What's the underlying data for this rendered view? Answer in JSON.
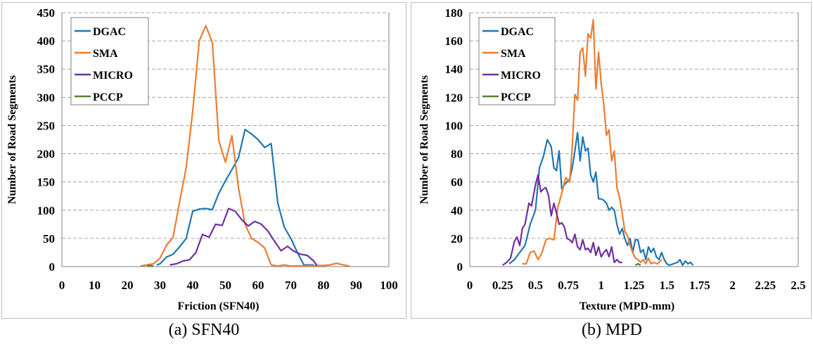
{
  "figure": {
    "captions": [
      "(a) SFN40",
      "(b) MPD"
    ]
  },
  "chart_data": [
    {
      "type": "line",
      "caption": "(a) SFN40",
      "xlabel": "Friction (SFN40)",
      "ylabel": "Number of Road Segments",
      "xlim": [
        0,
        100
      ],
      "ylim": [
        0,
        450
      ],
      "xticks": [
        "0",
        "10",
        "20",
        "30",
        "40",
        "50",
        "60",
        "70",
        "80",
        "90",
        "100"
      ],
      "yticks": [
        "0",
        "50",
        "100",
        "150",
        "200",
        "250",
        "300",
        "350",
        "400",
        "450"
      ],
      "grid": "horizontal dashed",
      "legend_position": "top-left",
      "series": [
        {
          "name": "DGAC",
          "color": "#1f77b4",
          "points": [
            [
              29,
              3
            ],
            [
              30,
              5
            ],
            [
              32,
              17
            ],
            [
              34,
              22
            ],
            [
              36,
              35
            ],
            [
              38,
              50
            ],
            [
              40,
              98
            ],
            [
              42,
              102
            ],
            [
              44,
              103
            ],
            [
              46,
              101
            ],
            [
              48,
              130
            ],
            [
              50,
              152
            ],
            [
              52,
              172
            ],
            [
              54,
              193
            ],
            [
              56,
              243
            ],
            [
              58,
              235
            ],
            [
              60,
              225
            ],
            [
              62,
              211
            ],
            [
              64,
              218
            ],
            [
              66,
              113
            ],
            [
              68,
              70
            ],
            [
              70,
              50
            ],
            [
              72,
              25
            ],
            [
              74,
              3
            ],
            [
              77,
              3
            ]
          ]
        },
        {
          "name": "SMA",
          "color": "#ed7d31",
          "points": [
            [
              24,
              1
            ],
            [
              26,
              3
            ],
            [
              28,
              5
            ],
            [
              30,
              15
            ],
            [
              32,
              38
            ],
            [
              34,
              52
            ],
            [
              36,
              115
            ],
            [
              38,
              175
            ],
            [
              40,
              275
            ],
            [
              42,
              400
            ],
            [
              44,
              427
            ],
            [
              46,
              397
            ],
            [
              48,
              223
            ],
            [
              50,
              185
            ],
            [
              52,
              232
            ],
            [
              54,
              140
            ],
            [
              56,
              75
            ],
            [
              58,
              50
            ],
            [
              60,
              43
            ],
            [
              62,
              33
            ],
            [
              64,
              3
            ],
            [
              66,
              1
            ],
            [
              68,
              3
            ],
            [
              70,
              1
            ],
            [
              80,
              2
            ],
            [
              82,
              3
            ],
            [
              84,
              6
            ],
            [
              86,
              3
            ],
            [
              88,
              1
            ]
          ]
        },
        {
          "name": "MICRO",
          "color": "#7030a0",
          "points": [
            [
              33,
              3
            ],
            [
              35,
              5
            ],
            [
              37,
              10
            ],
            [
              39,
              12
            ],
            [
              41,
              25
            ],
            [
              43,
              57
            ],
            [
              45,
              52
            ],
            [
              47,
              75
            ],
            [
              49,
              73
            ],
            [
              51,
              103
            ],
            [
              53,
              98
            ],
            [
              55,
              83
            ],
            [
              57,
              72
            ],
            [
              59,
              80
            ],
            [
              61,
              75
            ],
            [
              63,
              63
            ],
            [
              65,
              45
            ],
            [
              67,
              28
            ],
            [
              69,
              36
            ],
            [
              71,
              27
            ],
            [
              73,
              22
            ],
            [
              75,
              20
            ],
            [
              77,
              10
            ],
            [
              78,
              2
            ]
          ]
        },
        {
          "name": "PCCP",
          "color": "#548235",
          "points": [
            [
              26,
              1
            ],
            [
              27,
              2
            ],
            [
              28,
              1
            ]
          ]
        }
      ]
    },
    {
      "type": "line",
      "caption": "(b) MPD",
      "xlabel": "Texture (MPD-mm)",
      "ylabel": "Number of Road Segments",
      "xlim": [
        0,
        2.5
      ],
      "ylim": [
        0,
        180
      ],
      "xticks": [
        "0",
        "0.25",
        "0.5",
        "0.75",
        "1",
        "1.25",
        "1.5",
        "1.75",
        "2",
        "2.25",
        "2.5"
      ],
      "yticks": [
        "0",
        "20",
        "40",
        "60",
        "80",
        "100",
        "120",
        "140",
        "160",
        "180"
      ],
      "grid": "horizontal dashed",
      "legend_position": "top-left",
      "series": [
        {
          "name": "DGAC",
          "color": "#1f77b4",
          "points": [
            [
              0.3,
              2
            ],
            [
              0.34,
              5
            ],
            [
              0.38,
              10
            ],
            [
              0.42,
              15
            ],
            [
              0.46,
              30
            ],
            [
              0.5,
              40
            ],
            [
              0.53,
              70
            ],
            [
              0.56,
              78
            ],
            [
              0.59,
              90
            ],
            [
              0.62,
              85
            ],
            [
              0.64,
              70
            ],
            [
              0.66,
              68
            ],
            [
              0.68,
              82
            ],
            [
              0.7,
              55
            ],
            [
              0.72,
              58
            ],
            [
              0.74,
              60
            ],
            [
              0.76,
              62
            ],
            [
              0.78,
              70
            ],
            [
              0.8,
              82
            ],
            [
              0.82,
              95
            ],
            [
              0.84,
              75
            ],
            [
              0.86,
              92
            ],
            [
              0.88,
              82
            ],
            [
              0.9,
              84
            ],
            [
              0.92,
              65
            ],
            [
              0.94,
              60
            ],
            [
              0.96,
              67
            ],
            [
              0.98,
              48
            ],
            [
              1.0,
              48
            ],
            [
              1.02,
              47
            ],
            [
              1.04,
              45
            ],
            [
              1.06,
              40
            ],
            [
              1.08,
              42
            ],
            [
              1.1,
              40
            ],
            [
              1.12,
              30
            ],
            [
              1.14,
              23
            ],
            [
              1.16,
              27
            ],
            [
              1.18,
              20
            ],
            [
              1.2,
              15
            ],
            [
              1.22,
              20
            ],
            [
              1.24,
              10
            ],
            [
              1.26,
              19
            ],
            [
              1.28,
              19
            ],
            [
              1.3,
              10
            ],
            [
              1.32,
              12
            ],
            [
              1.34,
              5
            ],
            [
              1.36,
              14
            ],
            [
              1.38,
              10
            ],
            [
              1.4,
              13
            ],
            [
              1.42,
              7
            ],
            [
              1.44,
              5
            ],
            [
              1.46,
              10
            ],
            [
              1.48,
              5
            ],
            [
              1.5,
              2
            ],
            [
              1.52,
              1
            ],
            [
              1.58,
              3
            ],
            [
              1.6,
              5
            ],
            [
              1.62,
              1
            ],
            [
              1.64,
              4
            ],
            [
              1.66,
              2
            ],
            [
              1.68,
              3
            ],
            [
              1.7,
              1
            ]
          ]
        },
        {
          "name": "SMA",
          "color": "#ed7d31",
          "points": [
            [
              0.4,
              2
            ],
            [
              0.43,
              2
            ],
            [
              0.46,
              10
            ],
            [
              0.49,
              11
            ],
            [
              0.52,
              5
            ],
            [
              0.55,
              10
            ],
            [
              0.58,
              19
            ],
            [
              0.61,
              20
            ],
            [
              0.64,
              19
            ],
            [
              0.67,
              42
            ],
            [
              0.7,
              52
            ],
            [
              0.73,
              63
            ],
            [
              0.76,
              60
            ],
            [
              0.78,
              85
            ],
            [
              0.8,
              122
            ],
            [
              0.82,
              118
            ],
            [
              0.84,
              152
            ],
            [
              0.86,
              155
            ],
            [
              0.88,
              135
            ],
            [
              0.9,
              165
            ],
            [
              0.92,
              162
            ],
            [
              0.94,
              175
            ],
            [
              0.96,
              126
            ],
            [
              0.98,
              152
            ],
            [
              1.0,
              130
            ],
            [
              1.02,
              115
            ],
            [
              1.04,
              93
            ],
            [
              1.06,
              97
            ],
            [
              1.08,
              75
            ],
            [
              1.1,
              82
            ],
            [
              1.12,
              56
            ],
            [
              1.14,
              49
            ],
            [
              1.16,
              38
            ],
            [
              1.18,
              25
            ],
            [
              1.2,
              22
            ],
            [
              1.22,
              15
            ],
            [
              1.24,
              10
            ],
            [
              1.26,
              6
            ],
            [
              1.28,
              5
            ],
            [
              1.3,
              3
            ],
            [
              1.32,
              5
            ],
            [
              1.34,
              2
            ],
            [
              1.36,
              6
            ],
            [
              1.38,
              2
            ],
            [
              1.4,
              3
            ],
            [
              1.43,
              2
            ],
            [
              1.46,
              5
            ]
          ]
        },
        {
          "name": "MICRO",
          "color": "#7030a0",
          "points": [
            [
              0.25,
              1
            ],
            [
              0.28,
              3
            ],
            [
              0.31,
              6
            ],
            [
              0.34,
              18
            ],
            [
              0.36,
              21
            ],
            [
              0.38,
              15
            ],
            [
              0.4,
              27
            ],
            [
              0.42,
              30
            ],
            [
              0.45,
              45
            ],
            [
              0.47,
              43
            ],
            [
              0.5,
              58
            ],
            [
              0.52,
              65
            ],
            [
              0.54,
              53
            ],
            [
              0.56,
              55
            ],
            [
              0.58,
              56
            ],
            [
              0.6,
              50
            ],
            [
              0.62,
              36
            ],
            [
              0.64,
              45
            ],
            [
              0.66,
              38
            ],
            [
              0.68,
              30
            ],
            [
              0.7,
              31
            ],
            [
              0.72,
              28
            ],
            [
              0.74,
              20
            ],
            [
              0.76,
              19
            ],
            [
              0.78,
              17
            ],
            [
              0.8,
              23
            ],
            [
              0.82,
              14
            ],
            [
              0.84,
              12
            ],
            [
              0.86,
              19
            ],
            [
              0.88,
              12
            ],
            [
              0.9,
              13
            ],
            [
              0.92,
              10
            ],
            [
              0.94,
              17
            ],
            [
              0.96,
              8
            ],
            [
              0.98,
              14
            ],
            [
              1.0,
              7
            ],
            [
              1.02,
              10
            ],
            [
              1.04,
              12
            ],
            [
              1.06,
              7
            ],
            [
              1.08,
              14
            ],
            [
              1.1,
              3
            ],
            [
              1.12,
              5
            ],
            [
              1.14,
              3
            ],
            [
              1.16,
              3
            ]
          ]
        },
        {
          "name": "PCCP",
          "color": "#548235",
          "points": [
            [
              1.26,
              1
            ],
            [
              1.28,
              2
            ],
            [
              1.3,
              1
            ]
          ]
        }
      ]
    }
  ]
}
